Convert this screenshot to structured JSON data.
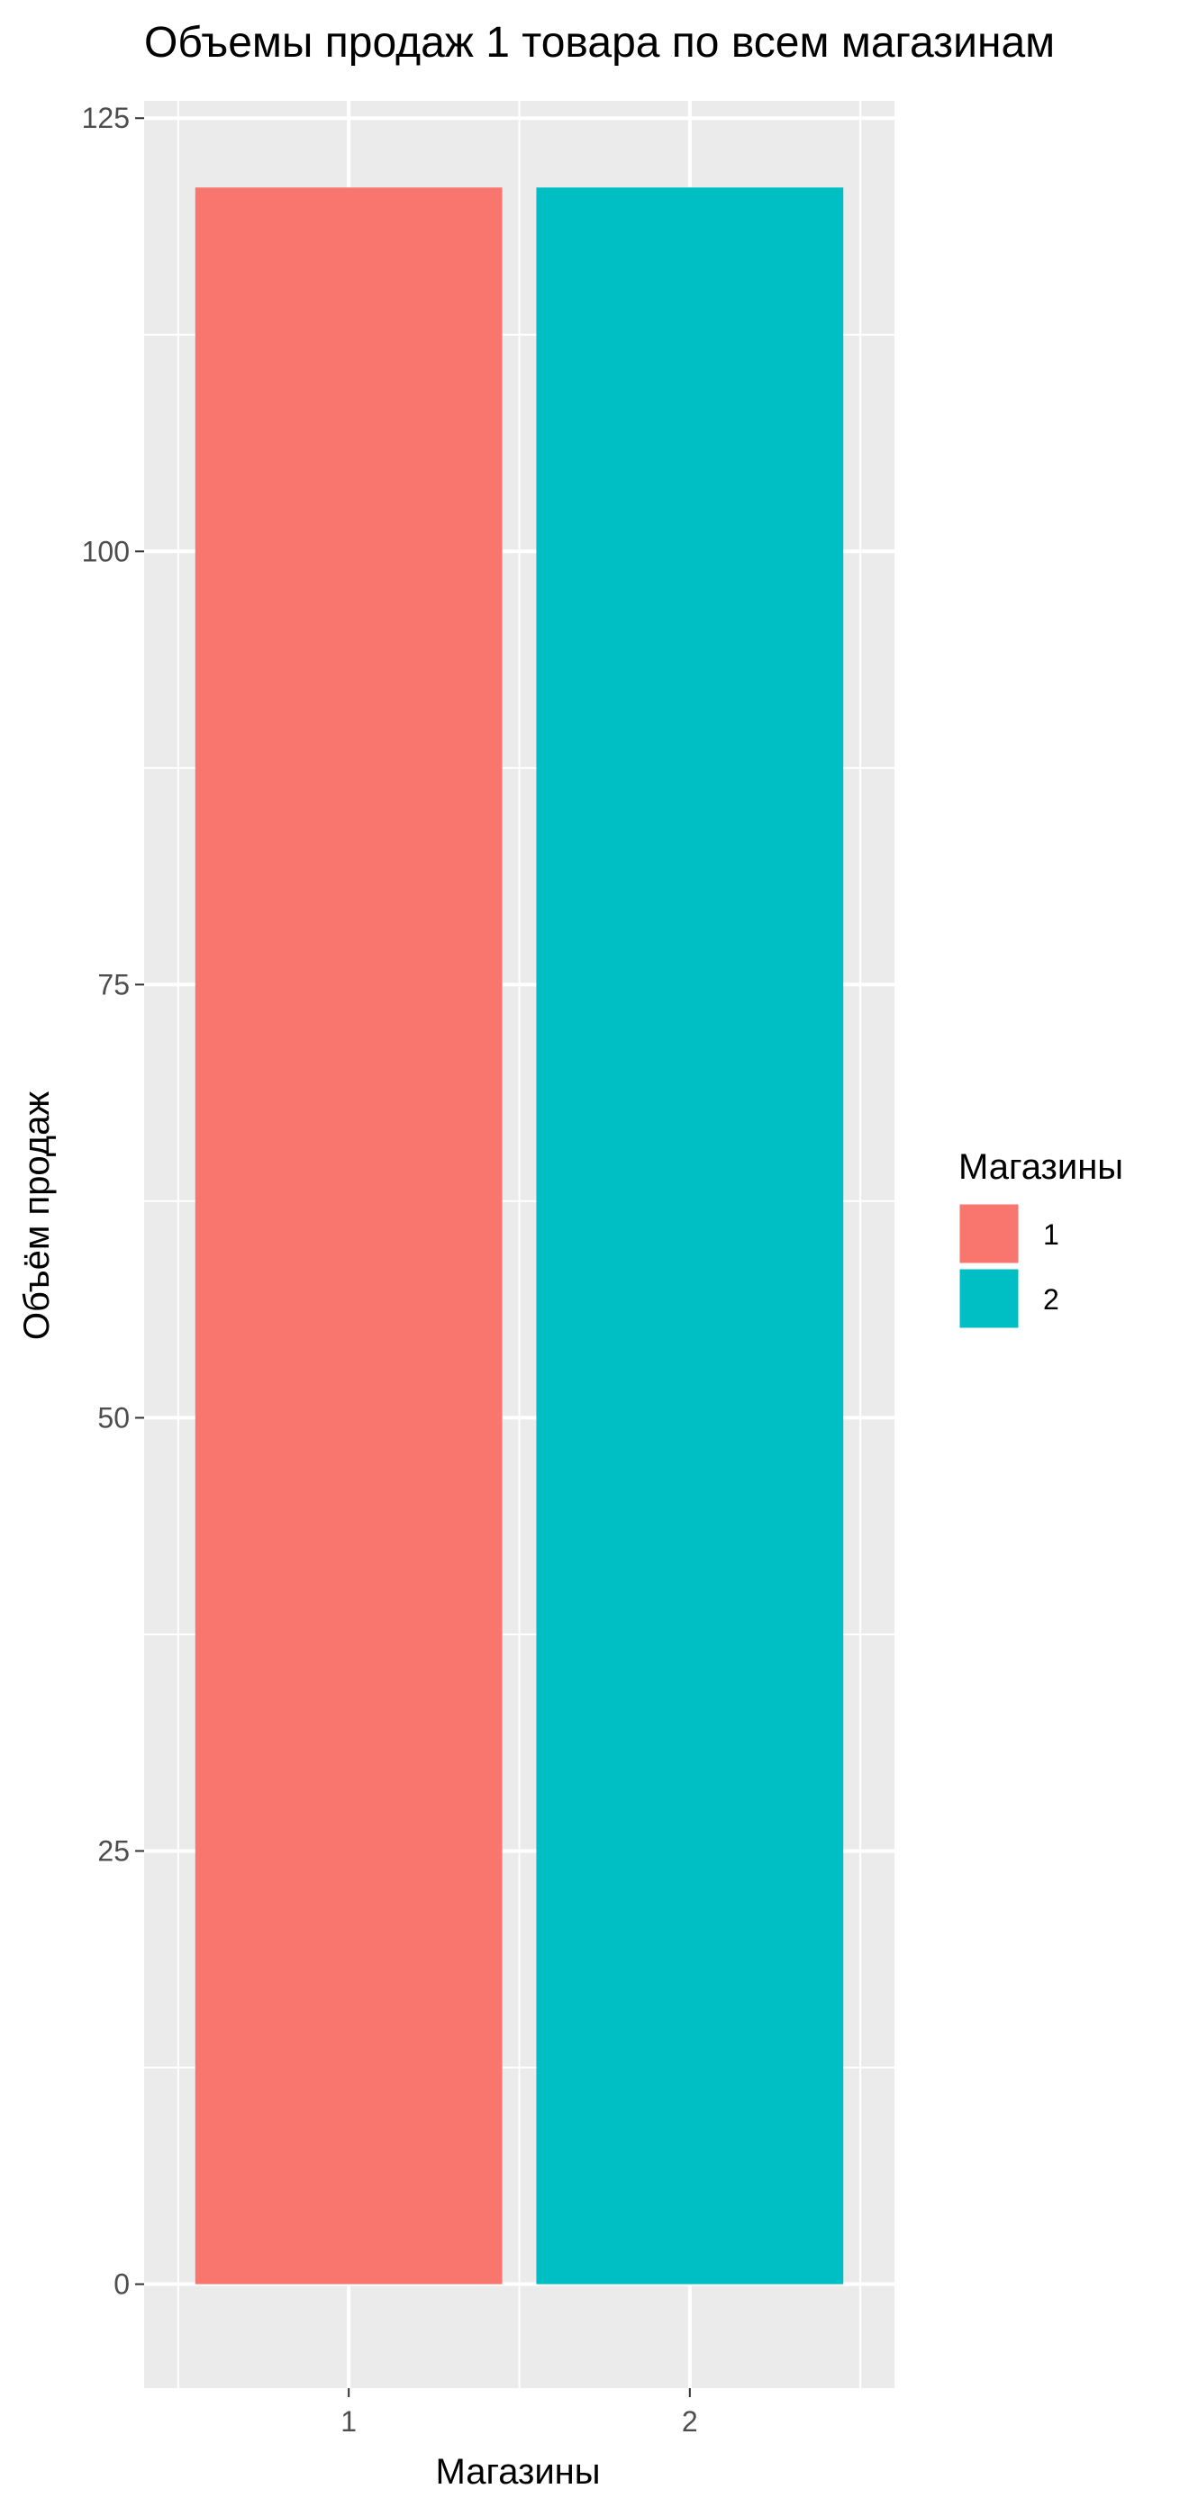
{
  "chart_data": {
    "type": "bar",
    "title": "Объемы продаж 1 товара по всем магазинам",
    "xlabel": "Магазины",
    "ylabel": "Объём продаж",
    "categories": [
      "1",
      "2"
    ],
    "values": [
      121,
      121
    ],
    "colors": [
      "#F8766D",
      "#00BFC4"
    ],
    "ylim": [
      -6,
      126
    ],
    "yticks": [
      0,
      25,
      50,
      75,
      100,
      125
    ],
    "grid": true,
    "panel_background": "#EBEBEB",
    "legend": {
      "title": "Магазины",
      "placement": "right",
      "items": [
        {
          "label": "1",
          "color": "#F8766D"
        },
        {
          "label": "2",
          "color": "#00BFC4"
        }
      ]
    }
  }
}
